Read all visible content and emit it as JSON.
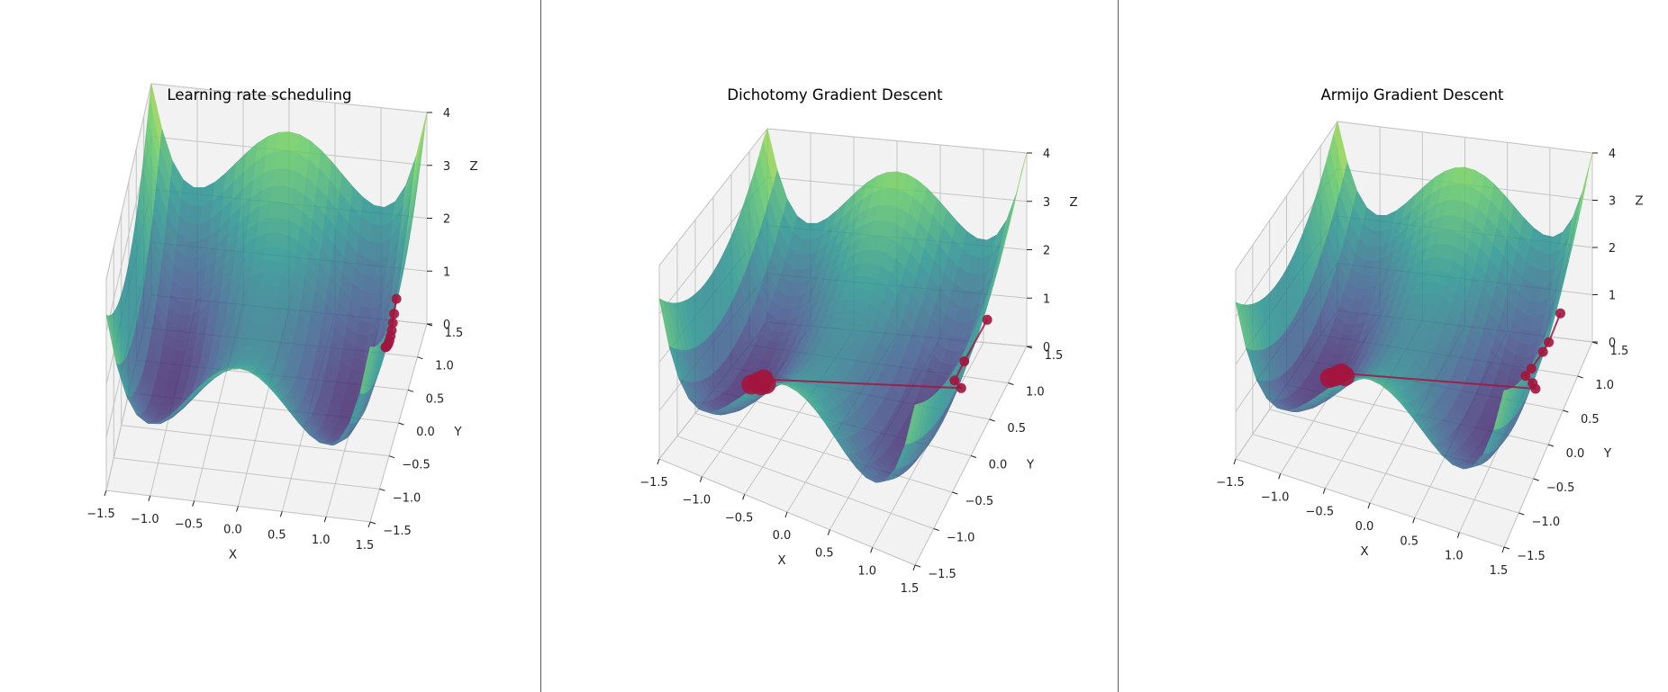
{
  "figure": {
    "panels": [
      {
        "title": "Learning rate scheduling"
      },
      {
        "title": "Dichotomy Gradient Descent"
      },
      {
        "title": "Armijo Gradient Descent"
      }
    ]
  },
  "chart_data": [
    {
      "type": "surface3d",
      "title": "Learning rate scheduling",
      "xlabel": "X",
      "ylabel": "Y",
      "zlabel": "Z",
      "xlim": [
        -1.5,
        1.5
      ],
      "ylim": [
        -1.5,
        1.5
      ],
      "zlim": [
        0,
        4
      ],
      "xticks": [
        "−1.5",
        "−1.0",
        "−0.5",
        "0.0",
        "0.5",
        "1.0",
        "1.5"
      ],
      "yticks": [
        "−1.5",
        "−1.0",
        "−0.5",
        "0.0",
        "0.5",
        "1.0",
        "1.5"
      ],
      "zticks": [
        "0",
        "1",
        "2",
        "3",
        "4"
      ],
      "colormap": "viridis",
      "grid": true,
      "path_color": "#a3153e",
      "descent_path": {
        "x": [
          1.3,
          1.28,
          1.27,
          1.26,
          1.25,
          1.24,
          1.23,
          1.22,
          1.21,
          1.2
        ],
        "y": [
          0.85,
          0.82,
          0.8,
          0.79,
          0.78,
          0.77,
          0.76,
          0.76,
          0.75,
          0.75
        ],
        "z": [
          1.25,
          1.0,
          0.85,
          0.72,
          0.62,
          0.55,
          0.5,
          0.47,
          0.45,
          0.44
        ]
      }
    },
    {
      "type": "surface3d",
      "title": "Dichotomy Gradient Descent",
      "xlabel": "X",
      "ylabel": "Y",
      "zlabel": "Z",
      "xlim": [
        -1.5,
        1.5
      ],
      "ylim": [
        -1.5,
        1.5
      ],
      "zlim": [
        0,
        4
      ],
      "xticks": [
        "−1.5",
        "−1.0",
        "−0.5",
        "0.0",
        "0.5",
        "1.0",
        "1.5"
      ],
      "yticks": [
        "−1.5",
        "−1.0",
        "−0.5",
        "0.0",
        "0.5",
        "1.0",
        "1.5"
      ],
      "zticks": [
        "0",
        "1",
        "2",
        "3",
        "4"
      ],
      "colormap": "viridis",
      "grid": true,
      "path_color": "#a3153e",
      "descent_path": {
        "x": [
          1.3,
          1.1,
          1.05,
          1.15,
          -1.0,
          -1.05,
          -1.1,
          -1.0,
          -0.95
        ],
        "y": [
          0.9,
          0.75,
          0.6,
          0.55,
          0.2,
          0.15,
          0.1,
          0.12,
          0.15
        ],
        "z": [
          1.4,
          0.7,
          0.5,
          0.45,
          0.25,
          0.22,
          0.2,
          0.21,
          0.22
        ]
      }
    },
    {
      "type": "surface3d",
      "title": "Armijo Gradient Descent",
      "xlabel": "X",
      "ylabel": "Y",
      "zlabel": "Z",
      "xlim": [
        -1.5,
        1.5
      ],
      "ylim": [
        -1.5,
        1.5
      ],
      "zlim": [
        0,
        4
      ],
      "xticks": [
        "−1.5",
        "−1.0",
        "−0.5",
        "0.0",
        "0.5",
        "1.0",
        "1.5"
      ],
      "yticks": [
        "−1.5",
        "−1.0",
        "−0.5",
        "0.0",
        "0.5",
        "1.0",
        "1.5"
      ],
      "zticks": [
        "0",
        "1",
        "2",
        "3",
        "4"
      ],
      "colormap": "viridis",
      "grid": true,
      "path_color": "#a3153e",
      "descent_path": {
        "x": [
          1.35,
          1.25,
          1.2,
          1.1,
          1.05,
          1.15,
          1.2,
          -0.95,
          -1.0,
          -1.05,
          -0.9
        ],
        "y": [
          0.85,
          0.75,
          0.7,
          0.6,
          0.55,
          0.5,
          0.45,
          0.2,
          0.15,
          0.12,
          0.18
        ],
        "z": [
          1.5,
          1.0,
          0.85,
          0.6,
          0.5,
          0.45,
          0.42,
          0.25,
          0.22,
          0.2,
          0.23
        ]
      }
    }
  ]
}
